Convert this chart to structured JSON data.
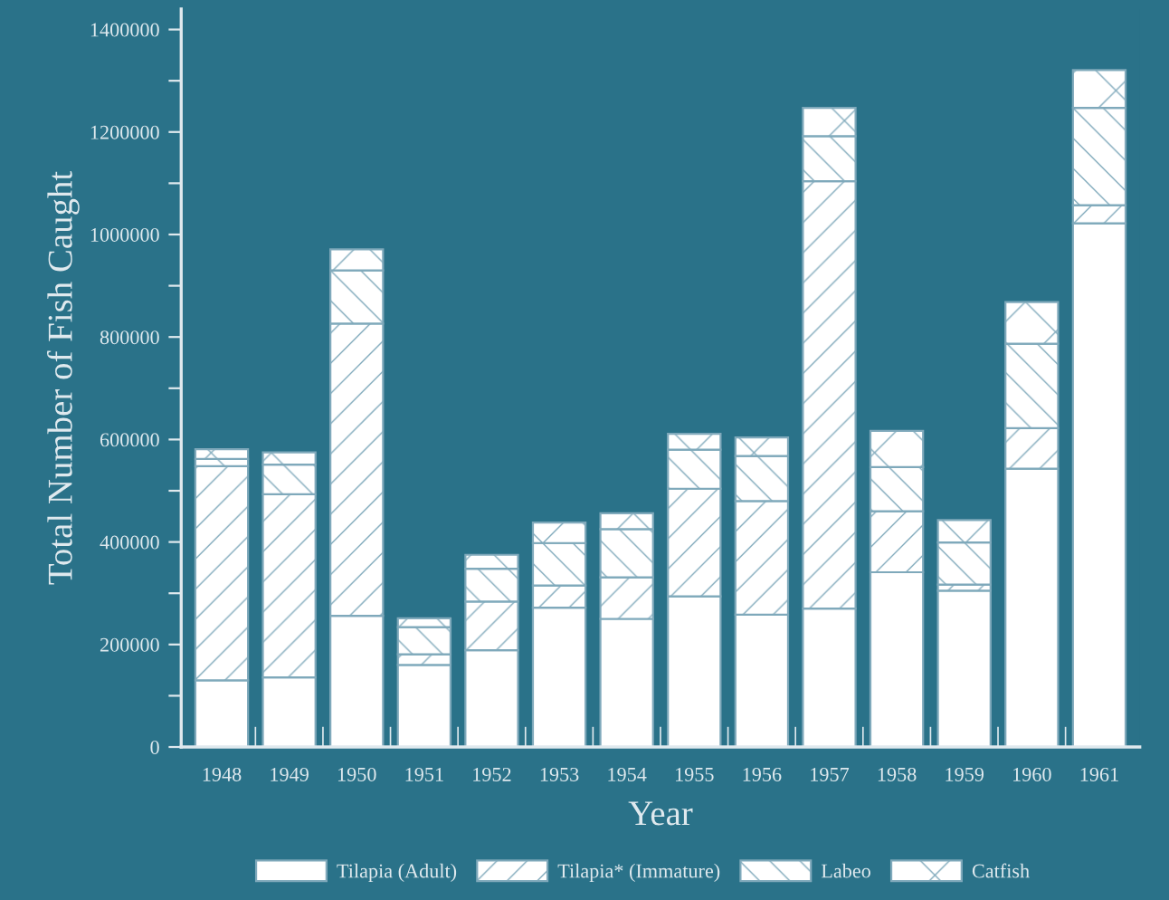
{
  "chart_data": {
    "type": "bar",
    "stacked": true,
    "xlabel": "Year",
    "ylabel": "Total Number of Fish Caught",
    "categories": [
      "1948",
      "1949",
      "1950",
      "1951",
      "1952",
      "1953",
      "1954",
      "1955",
      "1956",
      "1957",
      "1958",
      "1959",
      "1960",
      "1961"
    ],
    "series": [
      {
        "name": "Tilapia (Adult)",
        "color": "#ffffff",
        "values": [
          130000,
          136000,
          256000,
          160000,
          189000,
          272000,
          250000,
          294000,
          258000,
          270000,
          341000,
          305000,
          543000,
          1022000
        ]
      },
      {
        "name": "Tilapia* (Immature)",
        "color": "#7fa9bb",
        "values": [
          418000,
          357000,
          570000,
          21000,
          95000,
          43000,
          81000,
          210000,
          222000,
          834000,
          119000,
          12000,
          79000,
          35000
        ]
      },
      {
        "name": "Labeo",
        "color": "#7fa9bb",
        "values": [
          14000,
          58000,
          104000,
          53000,
          64000,
          83000,
          94000,
          76000,
          88000,
          88000,
          86000,
          82000,
          165000,
          190000
        ]
      },
      {
        "name": "Catfish",
        "color": "#7fa9bb",
        "values": [
          19000,
          24000,
          41000,
          17000,
          27000,
          40000,
          31000,
          31000,
          36000,
          55000,
          71000,
          44000,
          81000,
          74000
        ]
      }
    ],
    "ylim": [
      0,
      1440000
    ],
    "yticks": [
      0,
      {
        "value": 100000,
        "label": null
      },
      200000,
      {
        "value": 300000,
        "label": null
      },
      400000,
      {
        "value": 500000,
        "label": null
      },
      600000,
      {
        "value": 700000,
        "label": null
      },
      800000,
      {
        "value": 900000,
        "label": null
      },
      1000000,
      {
        "value": 1100000,
        "label": null
      },
      1200000,
      {
        "value": 1300000,
        "label": null
      },
      1400000
    ],
    "grid": false,
    "legend": "bottom"
  }
}
